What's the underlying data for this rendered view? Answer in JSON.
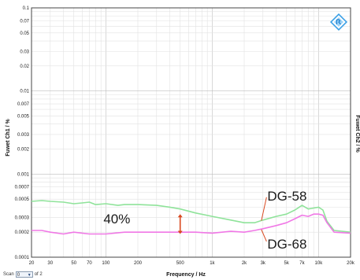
{
  "chart_data": {
    "type": "line",
    "xscale": "log",
    "yscale": "log",
    "xlabel": "Frequency / Hz",
    "ylabel": "Fuwet Ch1 / %",
    "ylabel_right": "Fuwet Ch2 / %",
    "xlim": [
      20,
      20000
    ],
    "ylim": [
      0.0001,
      0.1
    ],
    "grid": true,
    "x_ticks": [
      {
        "v": 20,
        "l": "20"
      },
      {
        "v": 30,
        "l": "30"
      },
      {
        "v": 50,
        "l": "50"
      },
      {
        "v": 70,
        "l": "70"
      },
      {
        "v": 100,
        "l": "100"
      },
      {
        "v": 200,
        "l": "200"
      },
      {
        "v": 500,
        "l": "500"
      },
      {
        "v": 1000,
        "l": "1k"
      },
      {
        "v": 2000,
        "l": "2k"
      },
      {
        "v": 3000,
        "l": "3k"
      },
      {
        "v": 5000,
        "l": "5k"
      },
      {
        "v": 7000,
        "l": "7k"
      },
      {
        "v": 10000,
        "l": "10k"
      },
      {
        "v": 20000,
        "l": "20k"
      }
    ],
    "y_ticks": [
      {
        "v": 0.1,
        "l": "0.1"
      },
      {
        "v": 0.07,
        "l": "0.07"
      },
      {
        "v": 0.05,
        "l": "0.05"
      },
      {
        "v": 0.03,
        "l": "0.03"
      },
      {
        "v": 0.02,
        "l": "0.02"
      },
      {
        "v": 0.01,
        "l": "0.01"
      },
      {
        "v": 0.007,
        "l": "0.007"
      },
      {
        "v": 0.005,
        "l": "0.005"
      },
      {
        "v": 0.003,
        "l": "0.003"
      },
      {
        "v": 0.002,
        "l": "0.002"
      },
      {
        "v": 0.001,
        "l": "0.001"
      },
      {
        "v": 0.0007,
        "l": "0.0007"
      },
      {
        "v": 0.0005,
        "l": "0.0005"
      },
      {
        "v": 0.0003,
        "l": "0.0003"
      },
      {
        "v": 0.0002,
        "l": "0.0002"
      },
      {
        "v": 0.0001,
        "l": "0.0001"
      }
    ],
    "series": [
      {
        "name": "DG-58",
        "color": "#8fe39a",
        "x": [
          20,
          25,
          30,
          40,
          50,
          60,
          70,
          80,
          100,
          130,
          150,
          200,
          300,
          400,
          500,
          700,
          1000,
          1500,
          2000,
          2500,
          3000,
          4000,
          5000,
          6000,
          7000,
          8000,
          9000,
          10000,
          11000,
          12000,
          14000,
          20000
        ],
        "y": [
          0.00047,
          0.00048,
          0.00047,
          0.00046,
          0.00044,
          0.00045,
          0.00046,
          0.00043,
          0.00044,
          0.00042,
          0.00043,
          0.00043,
          0.00042,
          0.0004,
          0.00038,
          0.00034,
          0.00031,
          0.00028,
          0.00026,
          0.00026,
          0.00028,
          0.00031,
          0.00033,
          0.00037,
          0.00042,
          0.00038,
          0.00039,
          0.0004,
          0.00037,
          0.00027,
          0.00021,
          0.0002
        ]
      },
      {
        "name": "DG-68",
        "color": "#f078e6",
        "x": [
          20,
          25,
          30,
          40,
          50,
          70,
          100,
          150,
          200,
          300,
          500,
          700,
          1000,
          1500,
          2000,
          2500,
          3000,
          4000,
          5000,
          6000,
          7000,
          8000,
          9000,
          10000,
          11000,
          12000,
          14000,
          20000
        ],
        "y": [
          0.00021,
          0.00021,
          0.0002,
          0.00019,
          0.0002,
          0.00019,
          0.00019,
          0.0002,
          0.0002,
          0.0002,
          0.0002,
          0.0002,
          0.000195,
          0.000205,
          0.0002,
          0.00021,
          0.00022,
          0.00024,
          0.00026,
          0.00029,
          0.00032,
          0.00031,
          0.00033,
          0.00033,
          0.00032,
          0.00026,
          0.0002,
          0.000195
        ]
      }
    ],
    "annotations": [
      {
        "text": "40%",
        "x": 95,
        "y": 0.00029
      },
      {
        "text": "DG-58",
        "x": 3300,
        "y": 0.00055
      },
      {
        "text": "DG-68",
        "x": 3300,
        "y": 0.000145
      }
    ],
    "arrow": {
      "x": 500,
      "y_from": 0.00033,
      "y_to": 0.00019,
      "color": "#d9481f"
    },
    "logo_icon": "rohde-schwarz-logo-icon"
  },
  "footer": {
    "scan_label": "Scan",
    "scan_value": "0",
    "scan_of": "of 2"
  }
}
